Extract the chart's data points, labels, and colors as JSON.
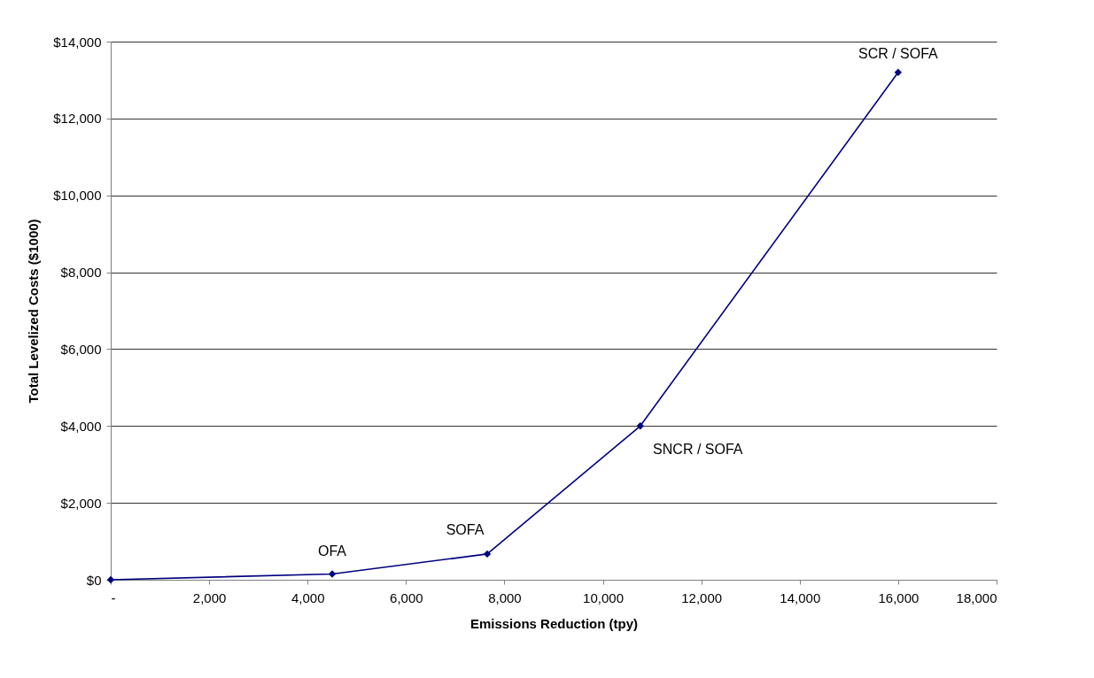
{
  "chart_data": {
    "type": "line",
    "xlabel": "Emissions Reduction (tpy)",
    "ylabel": "Total Levelized Costs ($1000)",
    "x": [
      0,
      4500,
      7650,
      10760,
      16000
    ],
    "series": [
      {
        "color": "#000080",
        "values": [
          0,
          150,
          670,
          4000,
          13200
        ]
      }
    ],
    "xlim": [
      0,
      18000
    ],
    "xticks": [
      {
        "value": 0,
        "label": "-"
      },
      {
        "value": 2000,
        "label": "2,000"
      },
      {
        "value": 4000,
        "label": "4,000"
      },
      {
        "value": 6000,
        "label": "6,000"
      },
      {
        "value": 8000,
        "label": "8,000"
      },
      {
        "value": 10000,
        "label": "10,000"
      },
      {
        "value": 12000,
        "label": "12,000"
      },
      {
        "value": 14000,
        "label": "14,000"
      },
      {
        "value": 16000,
        "label": "16,000"
      },
      {
        "value": 18000,
        "label": "18,000"
      }
    ],
    "ylim": [
      0,
      14000
    ],
    "yticks": [
      {
        "value": 0,
        "label": "$0"
      },
      {
        "value": 2000,
        "label": "$2,000"
      },
      {
        "value": 4000,
        "label": "$4,000"
      },
      {
        "value": 6000,
        "label": "$6,000"
      },
      {
        "value": 8000,
        "label": "$8,000"
      },
      {
        "value": 10000,
        "label": "$10,000"
      },
      {
        "value": 12000,
        "label": "$12,000"
      },
      {
        "value": 14000,
        "label": "$14,000"
      }
    ],
    "annotations": [
      {
        "text": "OFA",
        "x": 4500,
        "y": 150
      },
      {
        "text": "SOFA",
        "x": 7650,
        "y": 670
      },
      {
        "text": "SNCR / SOFA",
        "x": 10760,
        "y": 4000
      },
      {
        "text": "SCR / SOFA",
        "x": 16000,
        "y": 13200
      }
    ],
    "grid": "y",
    "marker": "diamond",
    "line_style": "solid"
  }
}
